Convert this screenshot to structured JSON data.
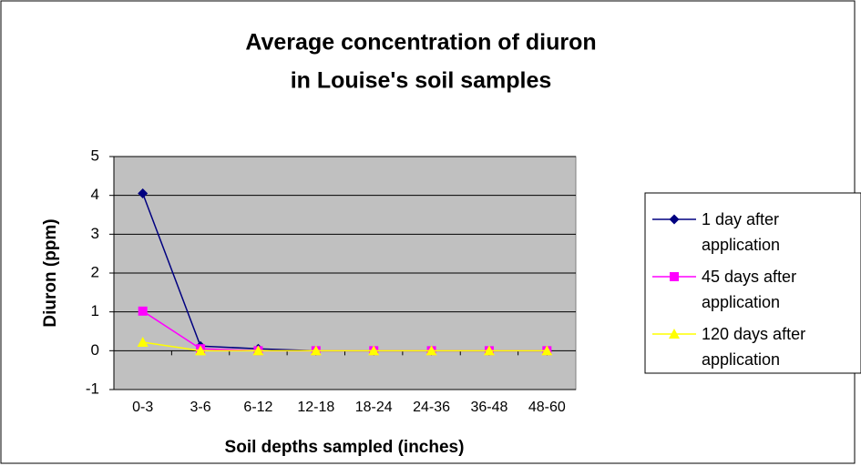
{
  "chart_data": {
    "type": "line",
    "title": [
      "Average concentration of diuron",
      "in Louise's soil samples"
    ],
    "x_label": "Soil depths sampled (inches)",
    "y_label": "Diuron (ppm)",
    "categories": [
      "0-3",
      "3-6",
      "6-12",
      "12-18",
      "18-24",
      "24-36",
      "36-48",
      "48-60"
    ],
    "series": [
      {
        "name": "1 day after application",
        "color": "#000080",
        "marker": "diamond",
        "values": [
          4.05,
          0.12,
          0.05,
          0,
          0,
          0,
          0,
          0
        ]
      },
      {
        "name": "45 days after application",
        "color": "#ff00ff",
        "marker": "square",
        "values": [
          1.02,
          0.05,
          0,
          0,
          0,
          0,
          0,
          0
        ]
      },
      {
        "name": "120 days after application",
        "color": "#ffff00",
        "marker": "triangle",
        "values": [
          0.22,
          0,
          0,
          0,
          0,
          0,
          0,
          0
        ]
      }
    ],
    "ylim": [
      -1,
      5
    ],
    "yticks": [
      -1,
      0,
      1,
      2,
      3,
      4,
      5
    ],
    "grid": true,
    "legend": "right"
  }
}
